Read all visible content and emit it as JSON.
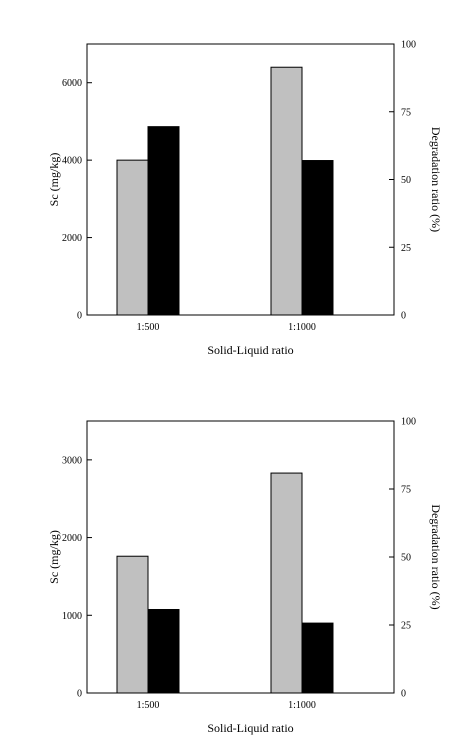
{
  "colors": {
    "background": "#ffffff",
    "axis": "#000000",
    "sc_bar": "#c0c0c0",
    "degradation_bar": "#000000"
  },
  "chart_data": [
    {
      "type": "bar",
      "categories": [
        "1:500",
        "1:1000"
      ],
      "xlabel": "Solid-Liquid ratio",
      "ylabel": "Sc (mg/kg)",
      "y2label": "Degradation ratio (%)",
      "ylim": [
        0,
        7000
      ],
      "y2lim": [
        0,
        100
      ],
      "yticks": [
        "0",
        "2000",
        "4000",
        "6000"
      ],
      "y2ticks": [
        "0",
        "25",
        "50",
        "75",
        "100"
      ],
      "series": [
        {
          "axis": "left",
          "color": "#c0c0c0",
          "values": [
            4000,
            6400
          ]
        },
        {
          "axis": "right",
          "color": "#000000",
          "values": [
            69.5,
            57
          ]
        }
      ]
    },
    {
      "type": "bar",
      "categories": [
        "1:500",
        "1:1000"
      ],
      "xlabel": "Solid-Liquid ratio",
      "ylabel": "Sc (mg/kg)",
      "y2label": "Degradation ratio (%)",
      "ylim": [
        0,
        3500
      ],
      "y2lim": [
        0,
        100
      ],
      "yticks": [
        "0",
        "1000",
        "2000",
        "3000"
      ],
      "y2ticks": [
        "0",
        "25",
        "50",
        "75",
        "100"
      ],
      "series": [
        {
          "axis": "left",
          "color": "#c0c0c0",
          "values": [
            1760,
            2830
          ]
        },
        {
          "axis": "right",
          "color": "#000000",
          "values": [
            30.7,
            25.7
          ]
        }
      ]
    }
  ]
}
